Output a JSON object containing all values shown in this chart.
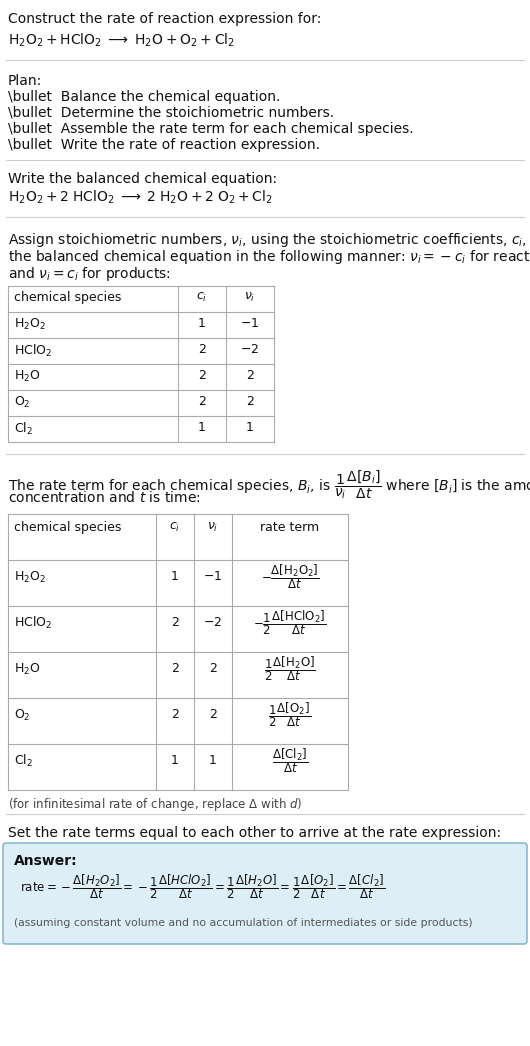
{
  "bg_color": "#ffffff",
  "answer_bg": "#ddeef6",
  "answer_border": "#88bbcc",
  "sections": {
    "title": {
      "line1": "Construct the rate of reaction expression for:",
      "line2": "$\\mathrm{H_2O_2 + HClO_2 \\;\\longrightarrow\\; H_2O + O_2 + Cl_2}$"
    },
    "plan": {
      "header": "Plan:",
      "items": [
        "\\bullet  Balance the chemical equation.",
        "\\bullet  Determine the stoichiometric numbers.",
        "\\bullet  Assemble the rate term for each chemical species.",
        "\\bullet  Write the rate of reaction expression."
      ]
    },
    "balanced": {
      "header": "Write the balanced chemical equation:",
      "eq": "$\\mathrm{H_2O_2 + 2\\; HClO_2 \\;\\longrightarrow\\; 2\\; H_2O + 2\\; O_2 + Cl_2}$"
    },
    "stoich_text": [
      "Assign stoichiometric numbers, $\\nu_i$, using the stoichiometric coefficients, $c_i$, from",
      "the balanced chemical equation in the following manner: $\\nu_i = -c_i$ for reactants",
      "and $\\nu_i = c_i$ for products:"
    ],
    "table1": {
      "headers": [
        "chemical species",
        "$c_i$",
        "$\\nu_i$"
      ],
      "rows": [
        [
          "$\\mathrm{H_2O_2}$",
          "1",
          "$-1$"
        ],
        [
          "$\\mathrm{HClO_2}$",
          "2",
          "$-2$"
        ],
        [
          "$\\mathrm{H_2O}$",
          "2",
          "2"
        ],
        [
          "$\\mathrm{O_2}$",
          "2",
          "2"
        ],
        [
          "$\\mathrm{Cl_2}$",
          "1",
          "1"
        ]
      ]
    },
    "rate_text": [
      "The rate term for each chemical species, $B_i$, is $\\dfrac{1}{\\nu_i}\\dfrac{\\Delta[B_i]}{\\Delta t}$ where $[B_i]$ is the amount",
      "concentration and $t$ is time:"
    ],
    "table2": {
      "headers": [
        "chemical species",
        "$c_i$",
        "$\\nu_i$",
        "rate term"
      ],
      "rows": [
        [
          "$\\mathrm{H_2O_2}$",
          "1",
          "$-1$",
          "$-\\dfrac{\\Delta[\\mathrm{H_2O_2}]}{\\Delta t}$"
        ],
        [
          "$\\mathrm{HClO_2}$",
          "2",
          "$-2$",
          "$-\\dfrac{1}{2}\\dfrac{\\Delta[\\mathrm{HClO_2}]}{\\Delta t}$"
        ],
        [
          "$\\mathrm{H_2O}$",
          "2",
          "2",
          "$\\dfrac{1}{2}\\dfrac{\\Delta[\\mathrm{H_2O}]}{\\Delta t}$"
        ],
        [
          "$\\mathrm{O_2}$",
          "2",
          "2",
          "$\\dfrac{1}{2}\\dfrac{\\Delta[\\mathrm{O_2}]}{\\Delta t}$"
        ],
        [
          "$\\mathrm{Cl_2}$",
          "1",
          "1",
          "$\\dfrac{\\Delta[\\mathrm{Cl_2}]}{\\Delta t}$"
        ]
      ]
    },
    "infinitesimal": "(for infinitesimal rate of change, replace $\\Delta$ with $d$)",
    "set_equal": "Set the rate terms equal to each other to arrive at the rate expression:",
    "answer": {
      "label": "Answer:",
      "eq": "$\\mathrm{rate} = -\\dfrac{\\Delta[H_2O_2]}{\\Delta t} = -\\dfrac{1}{2}\\dfrac{\\Delta[HClO_2]}{\\Delta t} = \\dfrac{1}{2}\\dfrac{\\Delta[H_2O]}{\\Delta t} = \\dfrac{1}{2}\\dfrac{\\Delta[O_2]}{\\Delta t} = \\dfrac{\\Delta[Cl_2]}{\\Delta t}$",
      "note": "(assuming constant volume and no accumulation of intermediates or side products)"
    }
  }
}
